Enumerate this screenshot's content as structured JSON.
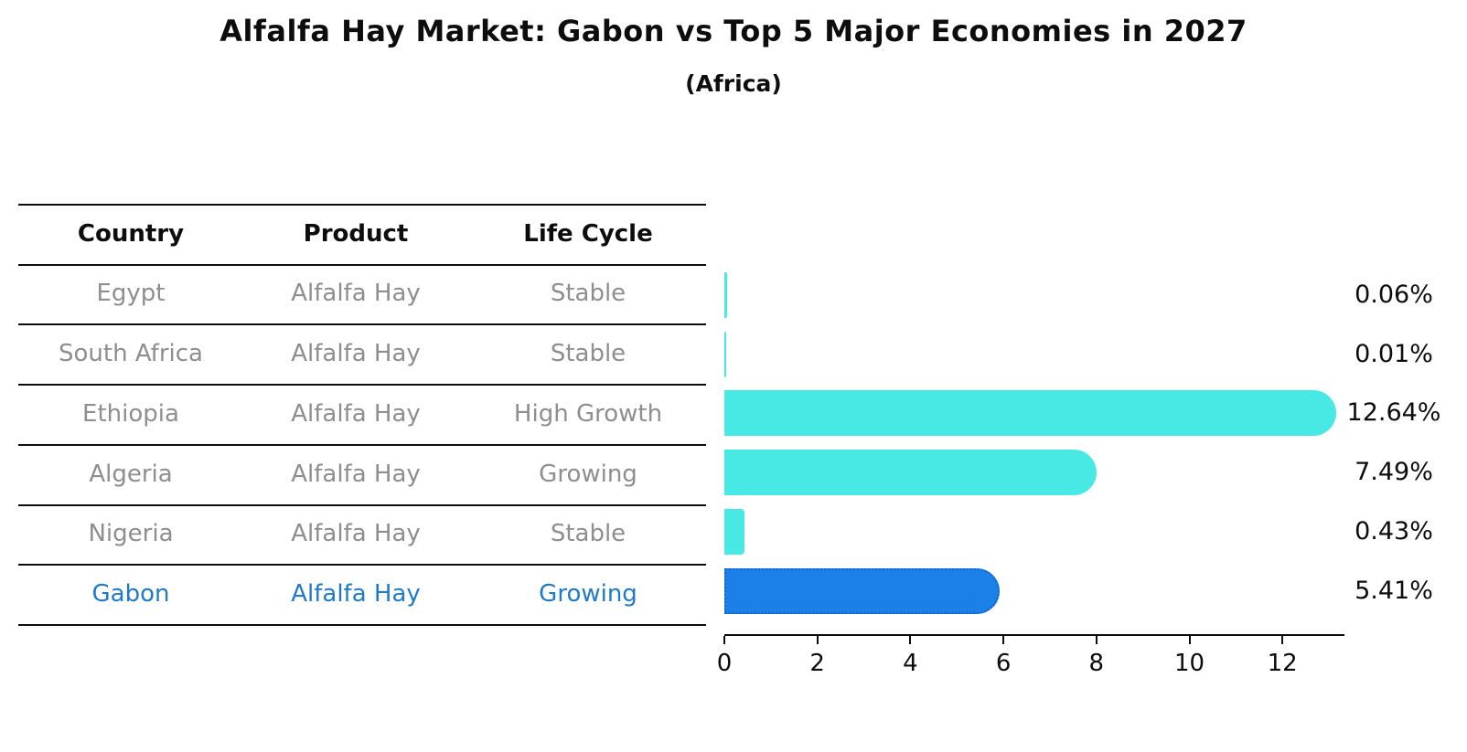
{
  "title": "Alfalfa Hay Market: Gabon vs Top 5 Major Economies in 2027",
  "subtitle": "(Africa)",
  "table": {
    "headers": [
      "Country",
      "Product",
      "Life Cycle"
    ],
    "rows": [
      {
        "country": "Egypt",
        "product": "Alfalfa Hay",
        "life_cycle": "Stable",
        "highlight": false
      },
      {
        "country": "South Africa",
        "product": "Alfalfa Hay",
        "life_cycle": "Stable",
        "highlight": false
      },
      {
        "country": "Ethiopia",
        "product": "Alfalfa Hay",
        "life_cycle": "High Growth",
        "highlight": false
      },
      {
        "country": "Algeria",
        "product": "Alfalfa Hay",
        "life_cycle": "Growing",
        "highlight": false
      },
      {
        "country": "Nigeria",
        "product": "Alfalfa Hay",
        "life_cycle": "Stable",
        "highlight": true
      }
    ]
  },
  "chart_data": {
    "type": "bar",
    "orientation": "horizontal",
    "title": "Alfalfa Hay Market: Gabon vs Top 5 Major Economies in 2027",
    "subtitle": "(Africa)",
    "categories": [
      "Egypt",
      "South Africa",
      "Ethiopia",
      "Algeria",
      "Nigeria",
      "Gabon"
    ],
    "values": [
      0.06,
      0.01,
      12.64,
      7.49,
      0.43,
      5.41
    ],
    "value_labels": [
      "0.06%",
      "0.01%",
      "12.64%",
      "7.49%",
      "0.43%",
      "5.41%"
    ],
    "x_ticks": [
      0,
      2,
      4,
      6,
      8,
      10,
      12
    ],
    "xlim": [
      0,
      13.3
    ],
    "grid": false,
    "legend": false,
    "highlight_index": 5,
    "bar_color": "#48E9E4",
    "highlight_bar_color": "#1B81E9",
    "highlight_border_color": "#1263CF",
    "highlight_text_color": "#1F7AC9",
    "text_color": "#8E8E8E",
    "axis_color": "#0D0D0D"
  }
}
